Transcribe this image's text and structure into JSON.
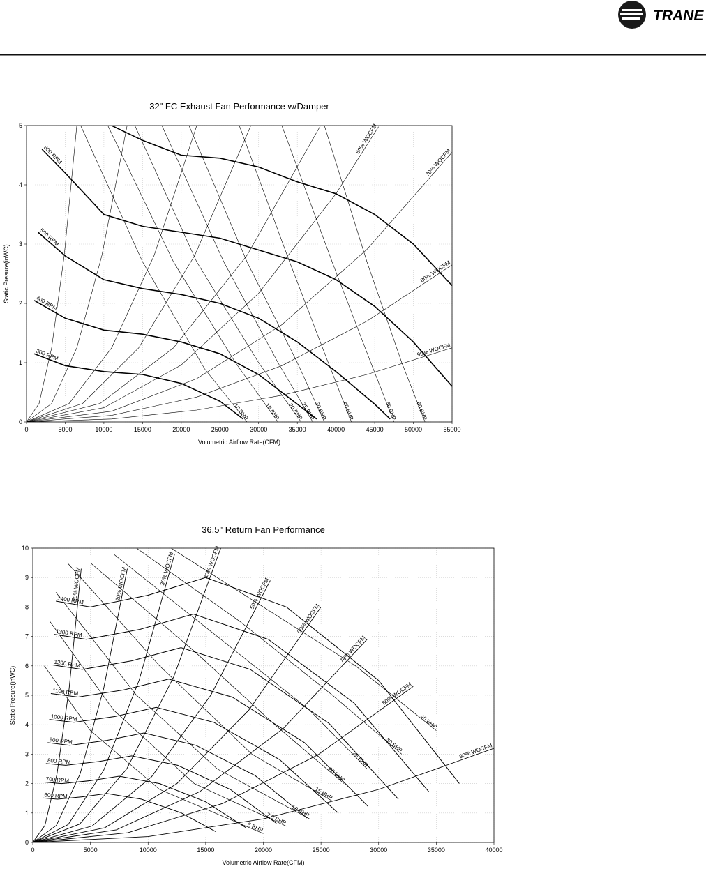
{
  "header": {
    "logo": "TRANE"
  },
  "chart_data": [
    {
      "type": "line",
      "title": "32\" FC Exhaust Fan Performance w/Damper",
      "x_label": "Volumetric Airflow Rate(CFM)",
      "y_label": "Static Presure(inWC)",
      "xlim": [
        0,
        55000
      ],
      "ylim": [
        0,
        5
      ],
      "xticks": [
        0,
        5000,
        10000,
        15000,
        20000,
        25000,
        30000,
        35000,
        40000,
        45000,
        50000,
        55000
      ],
      "yticks": [
        0,
        1,
        2,
        3,
        4,
        5
      ],
      "grid": true,
      "series": [
        {
          "name": "300 RPM",
          "color": "#000000",
          "width": 1.6,
          "x": [
            1000,
            5000,
            10000,
            15000,
            20000,
            25000,
            28000
          ],
          "values": [
            1.15,
            0.95,
            0.85,
            0.8,
            0.65,
            0.35,
            0.05
          ]
        },
        {
          "name": "400 RPM",
          "color": "#000000",
          "width": 1.6,
          "x": [
            1000,
            5000,
            10000,
            15000,
            20000,
            25000,
            30000,
            35000,
            37500
          ],
          "values": [
            2.05,
            1.75,
            1.55,
            1.48,
            1.35,
            1.15,
            0.8,
            0.3,
            0.05
          ]
        },
        {
          "name": "500 RPM",
          "color": "#000000",
          "width": 1.6,
          "x": [
            1500,
            5000,
            10000,
            15000,
            20000,
            25000,
            30000,
            35000,
            40000,
            45000,
            47000
          ],
          "values": [
            3.2,
            2.8,
            2.4,
            2.25,
            2.15,
            2.0,
            1.75,
            1.35,
            0.85,
            0.3,
            0.05
          ]
        },
        {
          "name": "600 RPM",
          "color": "#000000",
          "width": 1.6,
          "x": [
            2000,
            5000,
            10000,
            15000,
            20000,
            25000,
            30000,
            35000,
            40000,
            45000,
            50000,
            55000
          ],
          "values": [
            4.6,
            4.2,
            3.5,
            3.3,
            3.2,
            3.1,
            2.9,
            2.7,
            2.4,
            1.95,
            1.35,
            0.6
          ]
        },
        {
          "color": "#000000",
          "width": 1.6,
          "x": [
            11000,
            15000,
            20000,
            25000,
            30000,
            35000,
            40000,
            45000,
            50000,
            55000
          ],
          "values": [
            5.0,
            4.75,
            4.5,
            4.45,
            4.3,
            4.05,
            3.85,
            3.5,
            3.0,
            2.3
          ]
        },
        {
          "name": "10 BHP",
          "color": "#000000",
          "width": 0.6,
          "x": [
            7000,
            15000,
            23000,
            28500
          ],
          "values": [
            5,
            2.7,
            0.9,
            0
          ]
        },
        {
          "name": "15 BHP",
          "color": "#000000",
          "width": 0.6,
          "x": [
            10500,
            19000,
            27000,
            32500
          ],
          "values": [
            5,
            2.7,
            1.0,
            0
          ]
        },
        {
          "name": "20 BHP",
          "color": "#000000",
          "width": 0.6,
          "x": [
            14000,
            22000,
            30000,
            35500
          ],
          "values": [
            5,
            2.7,
            1.0,
            0
          ]
        },
        {
          "name": "25 BHP",
          "color": "#000000",
          "width": 0.6,
          "x": [
            17500,
            25500,
            32500,
            37000
          ],
          "values": [
            5,
            2.7,
            1.0,
            0
          ]
        },
        {
          "name": "30 BHP",
          "color": "#000000",
          "width": 0.6,
          "x": [
            21000,
            28500,
            35000,
            38500
          ],
          "values": [
            5,
            2.7,
            1.0,
            0
          ]
        },
        {
          "name": "40 BHP",
          "color": "#000000",
          "width": 0.6,
          "x": [
            27500,
            34000,
            39000,
            42000
          ],
          "values": [
            5,
            2.7,
            1.0,
            0
          ]
        },
        {
          "name": "50 BHP",
          "color": "#000000",
          "width": 0.6,
          "x": [
            33000,
            39500,
            44500,
            47500
          ],
          "values": [
            5,
            2.7,
            1.0,
            0
          ]
        },
        {
          "name": "60 BHP",
          "color": "#000000",
          "width": 0.6,
          "x": [
            38500,
            44000,
            48500,
            51500
          ],
          "values": [
            5,
            2.7,
            1.0,
            0
          ]
        },
        {
          "color": "#000000",
          "width": 0.6,
          "x": [
            0,
            1625,
            3250,
            4875,
            6500
          ],
          "values": [
            0,
            0.31,
            1.25,
            2.81,
            5
          ]
        },
        {
          "color": "#000000",
          "width": 0.6,
          "x": [
            0,
            3250,
            6500,
            9750,
            13000
          ],
          "values": [
            0,
            0.31,
            1.25,
            2.81,
            5
          ]
        },
        {
          "color": "#000000",
          "width": 0.6,
          "x": [
            0,
            5500,
            11000,
            16500,
            22000
          ],
          "values": [
            0,
            0.31,
            1.25,
            2.81,
            5
          ]
        },
        {
          "color": "#000000",
          "width": 0.6,
          "x": [
            0,
            7250,
            14500,
            21750,
            29000
          ],
          "values": [
            0,
            0.31,
            1.25,
            2.81,
            5
          ]
        },
        {
          "color": "#000000",
          "width": 0.6,
          "x": [
            0,
            9500,
            19000,
            28500,
            38000
          ],
          "values": [
            0,
            0.31,
            1.25,
            2.81,
            5
          ]
        },
        {
          "name": "60% WOCFM",
          "color": "#000000",
          "width": 0.6,
          "x": [
            0,
            10000,
            20000,
            30000,
            40000,
            45500
          ],
          "values": [
            0,
            0.24,
            0.96,
            2.17,
            3.85,
            4.98
          ]
        },
        {
          "name": "70% WOCFM",
          "color": "#000000",
          "width": 0.6,
          "x": [
            0,
            11000,
            22000,
            33000,
            44000,
            55000
          ],
          "values": [
            0,
            0.18,
            0.73,
            1.64,
            2.91,
            4.55
          ]
        },
        {
          "name": "80% WOCFM",
          "color": "#000000",
          "width": 0.6,
          "x": [
            0,
            11000,
            22000,
            33000,
            44000,
            55000
          ],
          "values": [
            0,
            0.11,
            0.42,
            0.95,
            1.7,
            2.65
          ]
        },
        {
          "name": "90% WOCFM",
          "color": "#000000",
          "width": 0.6,
          "x": [
            0,
            11000,
            22000,
            33000,
            44000,
            55000
          ],
          "values": [
            0,
            0.05,
            0.2,
            0.45,
            0.8,
            1.25
          ]
        }
      ]
    },
    {
      "type": "line",
      "title": "36.5\" Return Fan Performance",
      "x_label": "Volumetric Airflow Rate(CFM)",
      "y_label": "Static Presure(inWC)",
      "xlim": [
        0,
        40000
      ],
      "ylim": [
        0,
        10
      ],
      "xticks": [
        0,
        5000,
        10000,
        15000,
        20000,
        25000,
        30000,
        35000,
        40000
      ],
      "yticks": [
        0,
        1,
        2,
        3,
        4,
        5,
        6,
        7,
        8,
        9,
        10
      ],
      "grid": true,
      "series": [
        {
          "name": "1400 RPM",
          "color": "#000000",
          "width": 1.0,
          "x": [
            2000,
            5000,
            10000,
            15000,
            22000,
            30000,
            37000
          ],
          "values": [
            8.2,
            8.0,
            8.4,
            9.0,
            8.0,
            5.5,
            2.0
          ]
        },
        {
          "name": "1300 RPM",
          "color": "#000000",
          "width": 1.0,
          "x": [
            1860,
            4640,
            9290,
            13930,
            20430,
            27860,
            34360
          ],
          "values": [
            7.07,
            6.9,
            7.24,
            7.76,
            6.9,
            4.74,
            1.72
          ]
        },
        {
          "name": "1200 RPM",
          "color": "#000000",
          "width": 1.0,
          "x": [
            1710,
            4290,
            8570,
            12860,
            18860,
            25710,
            31710
          ],
          "values": [
            6.03,
            5.88,
            6.17,
            6.62,
            5.88,
            4.04,
            1.47
          ]
        },
        {
          "name": "1100 RPM",
          "color": "#000000",
          "width": 1.0,
          "x": [
            1570,
            3930,
            7860,
            11790,
            17290,
            23570,
            29070
          ],
          "values": [
            5.06,
            4.94,
            5.18,
            5.55,
            4.94,
            3.39,
            1.23
          ]
        },
        {
          "name": "1000 RPM",
          "color": "#000000",
          "width": 1.0,
          "x": [
            1430,
            3570,
            7140,
            10710,
            15710,
            21430,
            26430
          ],
          "values": [
            4.18,
            4.08,
            4.28,
            4.59,
            4.08,
            2.81,
            1.02
          ]
        },
        {
          "name": "900 RPM",
          "color": "#000000",
          "width": 1.0,
          "x": [
            1290,
            3210,
            6430,
            9640,
            14140,
            19290,
            23790
          ],
          "values": [
            3.39,
            3.3,
            3.47,
            3.72,
            3.3,
            2.27,
            0.83
          ]
        },
        {
          "name": "800 RPM",
          "color": "#000000",
          "width": 1.0,
          "x": [
            1140,
            2860,
            5710,
            8570,
            12570,
            17140,
            21140
          ],
          "values": [
            2.68,
            2.62,
            2.75,
            2.94,
            2.62,
            1.8,
            0.65
          ]
        },
        {
          "name": "700 RPM",
          "color": "#000000",
          "width": 1.0,
          "x": [
            1000,
            2500,
            5000,
            7500,
            11000,
            15000,
            18500
          ],
          "values": [
            2.05,
            2.0,
            2.1,
            2.25,
            2.0,
            1.38,
            0.5
          ]
        },
        {
          "name": "600 RPM",
          "color": "#000000",
          "width": 1.0,
          "x": [
            860,
            2140,
            4290,
            6430,
            9430,
            12860,
            15860
          ],
          "values": [
            1.51,
            1.47,
            1.55,
            1.66,
            1.47,
            1.01,
            0.37
          ]
        },
        {
          "name": "40 BHP",
          "color": "#000000",
          "width": 0.7,
          "x": [
            12000,
            20000,
            28000,
            35000
          ],
          "values": [
            10,
            8,
            6,
            3.8
          ]
        },
        {
          "name": "30 BHP",
          "color": "#000000",
          "width": 0.7,
          "x": [
            9000,
            18000,
            26000,
            32000
          ],
          "values": [
            10,
            7.5,
            5,
            3.0
          ]
        },
        {
          "name": "25 BHP",
          "color": "#000000",
          "width": 0.7,
          "x": [
            7000,
            16000,
            24000,
            29000
          ],
          "values": [
            9.8,
            7,
            4.5,
            2.5
          ]
        },
        {
          "name": "20 BHP",
          "color": "#000000",
          "width": 0.7,
          "x": [
            5000,
            14000,
            21000,
            27000
          ],
          "values": [
            9.5,
            6.5,
            4,
            2.0
          ]
        },
        {
          "name": "15 BHP",
          "color": "#000000",
          "width": 0.7,
          "x": [
            3000,
            11000,
            19000,
            26000
          ],
          "values": [
            9.5,
            6,
            3,
            1.4
          ]
        },
        {
          "name": "10 BHP",
          "color": "#000000",
          "width": 0.7,
          "x": [
            2000,
            9000,
            16000,
            24000
          ],
          "values": [
            8.5,
            5,
            2.5,
            0.8
          ]
        },
        {
          "name": "7.5 BHP",
          "color": "#000000",
          "width": 0.7,
          "x": [
            1500,
            7000,
            14000,
            22000
          ],
          "values": [
            7.5,
            4.5,
            2,
            0.55
          ]
        },
        {
          "name": "5 BHP",
          "color": "#000000",
          "width": 0.7,
          "x": [
            1000,
            5000,
            11000,
            20000
          ],
          "values": [
            6,
            3.8,
            1.8,
            0.3
          ]
        },
        {
          "name": "10% WOCFM",
          "color": "#000000",
          "width": 0.9,
          "x": [
            0,
            1050,
            2100,
            3150,
            4200
          ],
          "values": [
            0,
            0.58,
            2.33,
            5.23,
            9.3
          ]
        },
        {
          "name": "20% WOCFM",
          "color": "#000000",
          "width": 0.9,
          "x": [
            0,
            2050,
            4100,
            6150,
            8200
          ],
          "values": [
            0,
            0.58,
            2.33,
            5.23,
            9.3
          ]
        },
        {
          "name": "30% WOCFM",
          "color": "#000000",
          "width": 0.9,
          "x": [
            0,
            3075,
            6150,
            9225,
            12300
          ],
          "values": [
            0,
            0.61,
            2.45,
            5.51,
            9.8
          ]
        },
        {
          "name": "40% WOCFM",
          "color": "#000000",
          "width": 0.9,
          "x": [
            0,
            4075,
            8150,
            12225,
            16300
          ],
          "values": [
            0,
            0.625,
            2.5,
            5.625,
            10
          ]
        },
        {
          "name": "50% WOCFM",
          "color": "#000000",
          "width": 0.9,
          "x": [
            0,
            5150,
            10300,
            15450,
            20600
          ],
          "values": [
            0,
            0.56,
            2.23,
            5.01,
            8.9
          ]
        },
        {
          "name": "60% WOCFM",
          "color": "#000000",
          "width": 0.9,
          "x": [
            0,
            6250,
            12500,
            18750,
            25000
          ],
          "values": [
            0,
            0.5,
            2.0,
            4.5,
            8.0
          ]
        },
        {
          "name": "70% WOCFM",
          "color": "#000000",
          "width": 0.9,
          "x": [
            0,
            7250,
            14500,
            21750,
            29000
          ],
          "values": [
            0,
            0.43,
            1.73,
            3.88,
            6.9
          ]
        },
        {
          "name": "80% WOCFM",
          "color": "#000000",
          "width": 0.9,
          "x": [
            0,
            8250,
            16500,
            24750,
            33000
          ],
          "values": [
            0,
            0.33,
            1.33,
            2.98,
            5.3
          ]
        },
        {
          "name": "90% WOCFM",
          "color": "#000000",
          "width": 0.9,
          "x": [
            0,
            10000,
            20000,
            30000,
            40000
          ],
          "values": [
            0,
            0.2,
            0.8,
            1.8,
            3.2
          ]
        }
      ]
    }
  ]
}
